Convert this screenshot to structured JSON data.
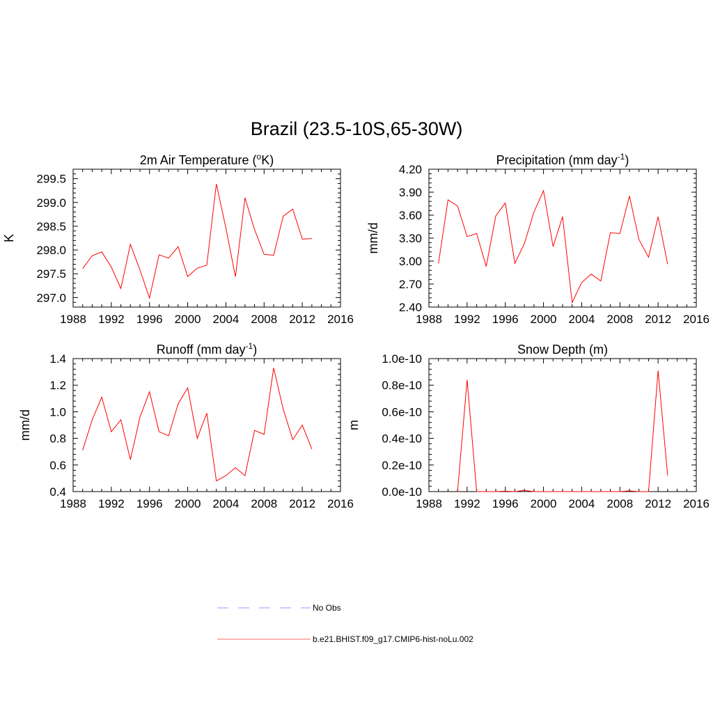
{
  "figure": {
    "title": "Brazil (23.5-10S,65-30W)",
    "line_color": "#ff0000",
    "obs_color": "#9999ff"
  },
  "legend": {
    "items": [
      {
        "label": "No Obs",
        "style": "dashed",
        "color": "#9999ff"
      },
      {
        "label": "b.e21.BHIST.f09_g17.CMIP6-hist-noLu.002",
        "style": "solid",
        "color": "#ff6666"
      }
    ]
  },
  "chart_data": [
    {
      "type": "line",
      "title": "2m Air Temperature (",
      "title_sup": "o",
      "title_tail": "K)",
      "ylabel": "K",
      "xlim": [
        1988,
        2016
      ],
      "ylim": [
        296.8,
        299.7
      ],
      "xticks": [
        1988,
        1992,
        1996,
        2000,
        2004,
        2008,
        2012,
        2016
      ],
      "yticks": [
        297.0,
        297.5,
        298.0,
        298.5,
        299.0,
        299.5
      ],
      "ytick_labels": [
        "297.0",
        "297.5",
        "298.0",
        "298.5",
        "299.0",
        "299.5"
      ],
      "x": [
        1989,
        1990,
        1991,
        1992,
        1993,
        1994,
        1995,
        1996,
        1997,
        1998,
        1999,
        2000,
        2001,
        2002,
        2003,
        2004,
        2005,
        2006,
        2007,
        2008,
        2009,
        2010,
        2011,
        2012,
        2013
      ],
      "y": [
        297.61,
        297.88,
        297.96,
        297.64,
        297.19,
        298.12,
        297.58,
        296.99,
        297.9,
        297.83,
        298.07,
        297.44,
        297.62,
        297.68,
        299.39,
        298.46,
        297.44,
        299.1,
        298.43,
        297.91,
        297.89,
        298.71,
        298.86,
        298.23,
        298.24
      ]
    },
    {
      "type": "line",
      "title": "Precipitation (mm day",
      "title_sup": "-1",
      "title_tail": ")",
      "ylabel": "mm/d",
      "xlim": [
        1988,
        2016
      ],
      "ylim": [
        2.4,
        4.2
      ],
      "xticks": [
        1988,
        1992,
        1996,
        2000,
        2004,
        2008,
        2012,
        2016
      ],
      "yticks": [
        2.4,
        2.7,
        3.0,
        3.3,
        3.6,
        3.9,
        4.2
      ],
      "ytick_labels": [
        "2.40",
        "2.70",
        "3.00",
        "3.30",
        "3.60",
        "3.90",
        "4.20"
      ],
      "x": [
        1989,
        1990,
        1991,
        1992,
        1993,
        1994,
        1995,
        1996,
        1997,
        1998,
        1999,
        2000,
        2001,
        2002,
        2003,
        2004,
        2005,
        2006,
        2007,
        2008,
        2009,
        2010,
        2011,
        2012,
        2013
      ],
      "y": [
        2.97,
        3.8,
        3.72,
        3.32,
        3.36,
        2.93,
        3.59,
        3.76,
        2.97,
        3.23,
        3.64,
        3.92,
        3.19,
        3.58,
        2.46,
        2.72,
        2.83,
        2.74,
        3.37,
        3.36,
        3.85,
        3.28,
        3.05,
        3.58,
        2.96
      ]
    },
    {
      "type": "line",
      "title": "Runoff (mm day",
      "title_sup": "-1",
      "title_tail": ")",
      "ylabel": "mm/d",
      "xlim": [
        1988,
        2016
      ],
      "ylim": [
        0.4,
        1.4
      ],
      "xticks": [
        1988,
        1992,
        1996,
        2000,
        2004,
        2008,
        2012,
        2016
      ],
      "yticks": [
        0.4,
        0.6,
        0.8,
        1.0,
        1.2,
        1.4
      ],
      "ytick_labels": [
        "0.4",
        "0.6",
        "0.8",
        "1.0",
        "1.2",
        "1.4"
      ],
      "x": [
        1989,
        1990,
        1991,
        1992,
        1993,
        1994,
        1995,
        1996,
        1997,
        1998,
        1999,
        2000,
        2001,
        2002,
        2003,
        2004,
        2005,
        2006,
        2007,
        2008,
        2009,
        2010,
        2011,
        2012,
        2013
      ],
      "y": [
        0.71,
        0.94,
        1.11,
        0.85,
        0.94,
        0.64,
        0.96,
        1.15,
        0.85,
        0.82,
        1.06,
        1.18,
        0.8,
        0.99,
        0.48,
        0.52,
        0.58,
        0.52,
        0.86,
        0.83,
        1.33,
        1.02,
        0.79,
        0.9,
        0.72
      ]
    },
    {
      "type": "line",
      "title": "Snow Depth (m)",
      "title_sup": "",
      "title_tail": "",
      "ylabel": "m",
      "xlim": [
        1988,
        2016
      ],
      "ylim": [
        0.0,
        1.0
      ],
      "y_unit_note": "values in units of 1e-10 m",
      "xticks": [
        1988,
        1992,
        1996,
        2000,
        2004,
        2008,
        2012,
        2016
      ],
      "yticks": [
        0.0,
        0.2,
        0.4,
        0.6,
        0.8,
        1.0
      ],
      "ytick_labels": [
        "0.0e-10",
        "0.2e-10",
        "0.4e-10",
        "0.6e-10",
        "0.8e-10",
        "1.0e-10"
      ],
      "x": [
        1989,
        1990,
        1991,
        1992,
        1993,
        1994,
        1995,
        1996,
        1997,
        1998,
        1999,
        2000,
        2001,
        2002,
        2003,
        2004,
        2005,
        2006,
        2007,
        2008,
        2009,
        2010,
        2011,
        2012,
        2013
      ],
      "y": [
        null,
        null,
        0.0,
        0.84,
        0.0,
        0.0,
        0.0,
        0.003,
        0.0,
        0.01,
        0.0,
        0.0,
        0.0,
        0.0,
        0.0,
        0.0,
        0.0,
        0.0,
        0.0,
        0.0,
        0.005,
        0.0,
        0.0,
        0.91,
        0.12
      ]
    }
  ]
}
